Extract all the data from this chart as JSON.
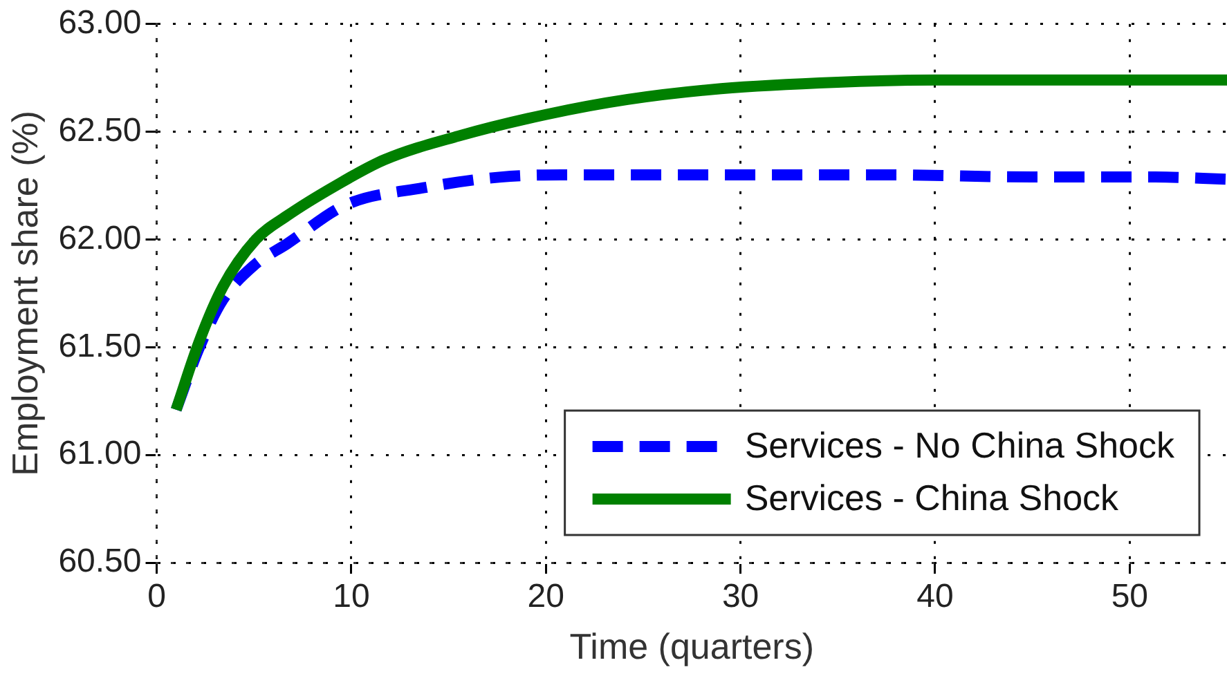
{
  "chart_data": {
    "type": "line",
    "xlabel": "Time (quarters)",
    "ylabel": "Employment share (%)",
    "xlim": [
      0,
      55
    ],
    "xticks": [
      0,
      10,
      20,
      30,
      40,
      50
    ],
    "ylim": [
      60.5,
      63.0
    ],
    "yticks": [
      {
        "value": 60.5,
        "label": "60.50"
      },
      {
        "value": 61,
        "label": "61.00"
      },
      {
        "value": 61.5,
        "label": "61.50"
      },
      {
        "value": 62,
        "label": "62.00"
      },
      {
        "value": 62.5,
        "label": "62.50"
      },
      {
        "value": 63,
        "label": "63.00"
      }
    ],
    "grid": true,
    "legend": "bottom right",
    "marker": "none",
    "series": [
      {
        "name": "Services - No China Shock",
        "color": "#0000ff",
        "line_style": "dashed",
        "x": [
          1,
          2.2,
          3.4,
          5,
          6.7,
          9.7,
          13.7,
          17.7,
          20.8,
          27.5,
          37.6,
          45,
          51.3,
          55
        ],
        "values": [
          61.21,
          61.5,
          61.72,
          61.88,
          61.98,
          62.16,
          62.24,
          62.29,
          62.3,
          62.3,
          62.3,
          62.29,
          62.29,
          62.28
        ]
      },
      {
        "name": "Services - China Shock",
        "color": "#008000",
        "line_style": "solid",
        "x": [
          1,
          2.2,
          3.4,
          5.1,
          6.7,
          9.2,
          11.7,
          15.5,
          20,
          24.2,
          29,
          35,
          40,
          50,
          55
        ],
        "values": [
          61.21,
          61.53,
          61.78,
          62.0,
          62.11,
          62.25,
          62.37,
          62.48,
          62.58,
          62.65,
          62.7,
          62.73,
          62.74,
          62.74,
          62.74
        ]
      }
    ]
  }
}
